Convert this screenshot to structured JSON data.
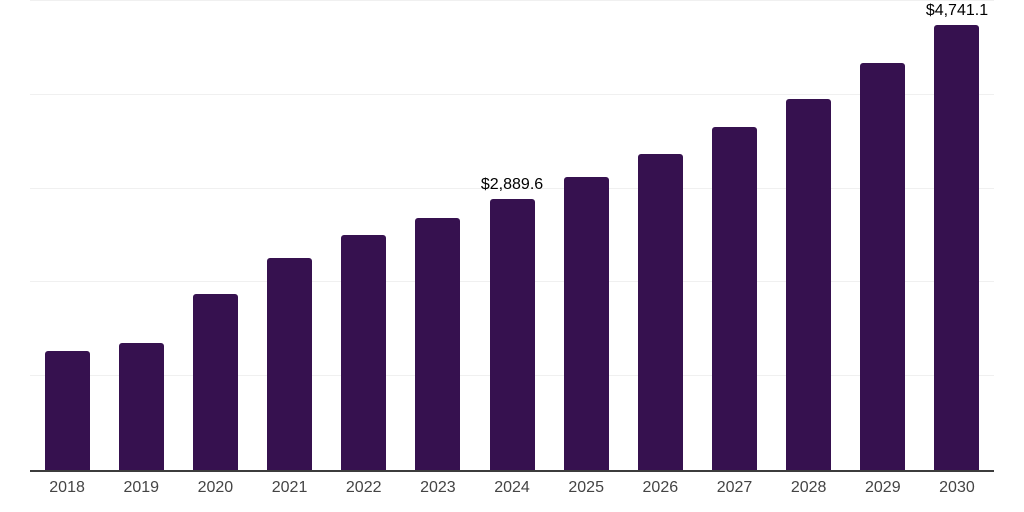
{
  "chart_data": {
    "type": "bar",
    "categories": [
      "2018",
      "2019",
      "2020",
      "2021",
      "2022",
      "2023",
      "2024",
      "2025",
      "2026",
      "2027",
      "2028",
      "2029",
      "2030"
    ],
    "values": [
      1265,
      1350,
      1875,
      2265,
      2505,
      2685,
      2889.6,
      3120,
      3370,
      3660,
      3960,
      4340,
      4741.1
    ],
    "data_labels": {
      "2024": "$2,889.6",
      "2030": "$4,741.1"
    },
    "title": "",
    "xlabel": "",
    "ylabel": "",
    "ylim": [
      0,
      5000
    ],
    "grid_step": 1000,
    "grid": true,
    "legend": "none"
  },
  "style": {
    "bar_color": "#36114F",
    "grid_color": "#F0F0F0",
    "axis_color": "#3C3C3C",
    "tick_label_color": "#444444",
    "data_label_color": "#000000",
    "background_color": "#FFFFFF"
  }
}
